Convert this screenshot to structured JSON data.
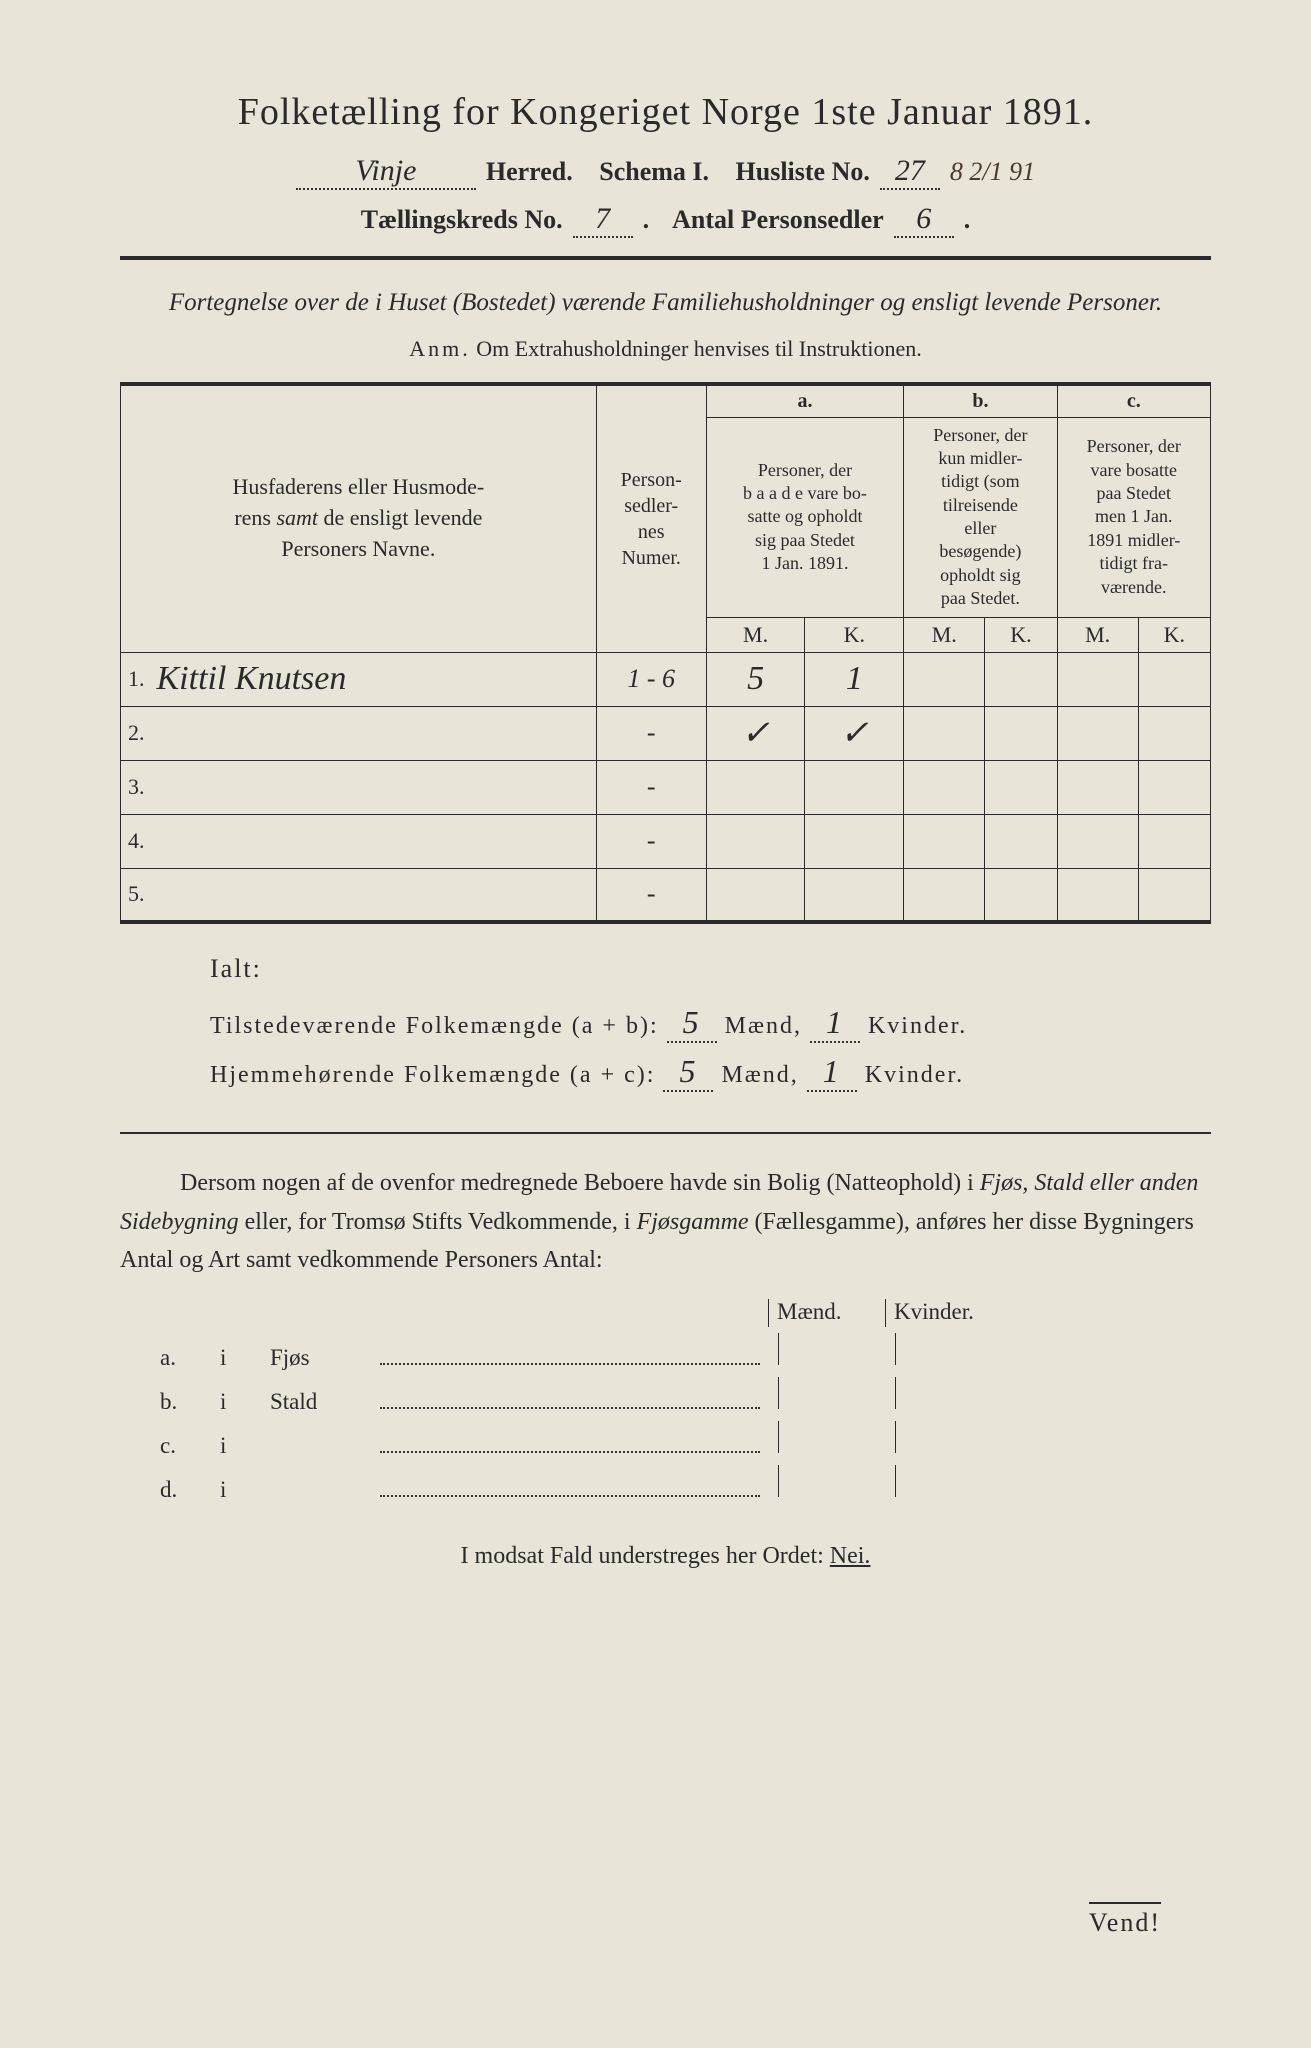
{
  "colors": {
    "paper_bg": "#e8e4d8",
    "ink": "#2a2a2a",
    "handwriting": "#4a3a2a"
  },
  "typography": {
    "title_fontsize": 38,
    "header_fontsize": 26,
    "body_fontsize": 24,
    "table_header_fontsize": 20,
    "handwriting_fontsize": 32
  },
  "title": "Folketælling for Kongeriget Norge 1ste Januar 1891.",
  "header": {
    "herred_value": "Vinje",
    "herred_label": "Herred.",
    "schema_label": "Schema I.",
    "husliste_label": "Husliste No.",
    "husliste_value": "27",
    "annotation": "8 2/1 91",
    "kreds_label": "Tællingskreds No.",
    "kreds_value": "7",
    "personsedler_label": "Antal Personsedler",
    "personsedler_value": "6"
  },
  "description": "Fortegnelse over de i Huset (Bostedet) værende Familiehusholdninger og ensligt levende Personer.",
  "anm_label": "Anm.",
  "anm_text": "Om Extrahusholdninger henvises til Instruktionen.",
  "table": {
    "col_names_header": "Husfaderens eller Husmoderens samt de ensligt levende Personers Navne.",
    "col_numer_header": "Personsedlernes Numer.",
    "group_a_label": "a.",
    "group_a_text": "Personer, der baade vare bosatte og opholdt sig paa Stedet 1 Jan. 1891.",
    "group_b_label": "b.",
    "group_b_text": "Personer, der kun midlertidigt (som tilreisende eller besøgende) opholdt sig paa Stedet.",
    "group_c_label": "c.",
    "group_c_text": "Personer, der vare bosatte paa Stedet men 1 Jan. 1891 midlertidigt fraværende.",
    "m_label": "M.",
    "k_label": "K.",
    "rows": [
      {
        "num": "1.",
        "name": "Kittil Knutsen",
        "numer": "1 - 6",
        "a_m": "5",
        "a_k": "1",
        "b_m": "",
        "b_k": "",
        "c_m": "",
        "c_k": ""
      },
      {
        "num": "2.",
        "name": "",
        "numer": "-",
        "a_m": "✓",
        "a_k": "✓",
        "b_m": "",
        "b_k": "",
        "c_m": "",
        "c_k": ""
      },
      {
        "num": "3.",
        "name": "",
        "numer": "-",
        "a_m": "",
        "a_k": "",
        "b_m": "",
        "b_k": "",
        "c_m": "",
        "c_k": ""
      },
      {
        "num": "4.",
        "name": "",
        "numer": "-",
        "a_m": "",
        "a_k": "",
        "b_m": "",
        "b_k": "",
        "c_m": "",
        "c_k": ""
      },
      {
        "num": "5.",
        "name": "",
        "numer": "-",
        "a_m": "",
        "a_k": "",
        "b_m": "",
        "b_k": "",
        "c_m": "",
        "c_k": ""
      }
    ]
  },
  "ialt_label": "Ialt:",
  "summary": {
    "line1_label": "Tilstedeværende Folkemængde (a + b):",
    "line1_m": "5",
    "line1_k": "1",
    "line2_label": "Hjemmehørende Folkemængde (a + c):",
    "line2_m": "5",
    "line2_k": "1",
    "maend_label": "Mænd,",
    "kvinder_label": "Kvinder."
  },
  "paragraph": {
    "p1": "Dersom nogen af de ovenfor medregnede Beboere havde sin Bolig (Natteophold) i ",
    "i1": "Fjøs, Stald eller anden Sidebygning",
    "p2": " eller, for Tromsø Stifts Vedkommende, i ",
    "i2": "Fjøsgamme",
    "p3": " (Fællesgamme), anføres her disse Bygningers Antal og Art samt vedkommende Personers Antal:"
  },
  "bygning": {
    "maend_label": "Mænd.",
    "kvinder_label": "Kvinder.",
    "rows": [
      {
        "label": "a.",
        "i": "i",
        "type": "Fjøs"
      },
      {
        "label": "b.",
        "i": "i",
        "type": "Stald"
      },
      {
        "label": "c.",
        "i": "i",
        "type": ""
      },
      {
        "label": "d.",
        "i": "i",
        "type": ""
      }
    ]
  },
  "modsat": "I modsat Fald understreges her Ordet: ",
  "nei": "Nei.",
  "vend": "Vend!"
}
